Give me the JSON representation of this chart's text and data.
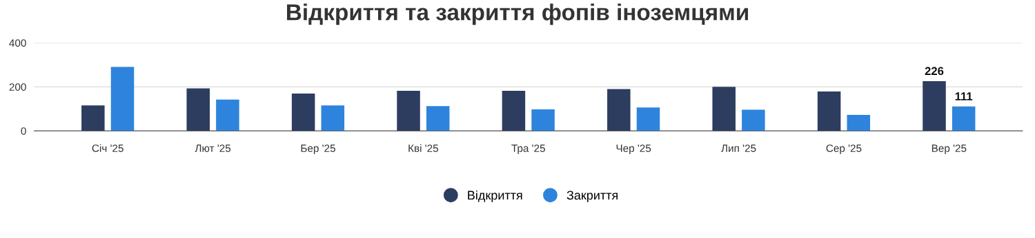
{
  "chart_data": {
    "type": "bar",
    "title": "Відкриття та закриття фопів іноземцями",
    "categories": [
      "Січ '25",
      "Лют '25",
      "Бер '25",
      "Кві '25",
      "Тра '25",
      "Чер '25",
      "Лип '25",
      "Сер '25",
      "Вер '25"
    ],
    "series": [
      {
        "name": "Відкриття",
        "color": "#2d3d5f",
        "values": [
          116,
          193,
          170,
          182,
          182,
          190,
          200,
          179,
          226
        ],
        "value_labels": [
          null,
          null,
          null,
          null,
          null,
          null,
          null,
          null,
          "226"
        ]
      },
      {
        "name": "Закриття",
        "color": "#2e84dc",
        "values": [
          291,
          142,
          116,
          113,
          98,
          106,
          96,
          73,
          111
        ],
        "value_labels": [
          null,
          null,
          null,
          null,
          null,
          null,
          null,
          null,
          "111"
        ]
      }
    ],
    "ylim": [
      0,
      400
    ],
    "yticks": [
      0,
      200,
      400
    ],
    "grid": "y",
    "legend": "bottom"
  }
}
